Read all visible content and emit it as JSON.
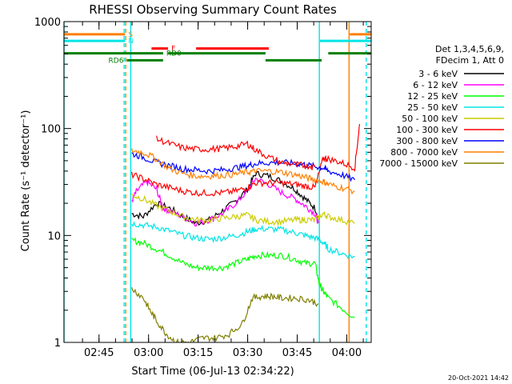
{
  "chart_data": {
    "type": "line",
    "title": "RHESSI Observing Summary Count Rates",
    "xlabel": "Start Time (06-Jul-13 02:34:22)",
    "ylabel": "Count Rate (s⁻¹ detector⁻¹)",
    "yscale": "log",
    "ylim": [
      1,
      1000
    ],
    "xlim": [
      0,
      93
    ],
    "x_unit": "minutes after 02:34:22",
    "y_ticks": [
      {
        "value": 1,
        "label": "1"
      },
      {
        "value": 10,
        "label": "10"
      },
      {
        "value": 100,
        "label": "100"
      },
      {
        "value": 1000,
        "label": "1000"
      }
    ],
    "x_ticks": [
      {
        "value": 10.6,
        "label": "02:45"
      },
      {
        "value": 25.6,
        "label": "03:00"
      },
      {
        "value": 40.6,
        "label": "03:15"
      },
      {
        "value": 55.6,
        "label": "03:30"
      },
      {
        "value": 70.6,
        "label": "03:45"
      },
      {
        "value": 85.6,
        "label": "04:00"
      }
    ],
    "legend_header": [
      "Det 1,3,4,5,6,9,",
      "FDecim 1, Att 0"
    ],
    "legend_position": "right",
    "timestamp": "20-Oct-2021 14:42",
    "flags": [
      {
        "label": "S",
        "color": "#ff7f00",
        "level": 760,
        "segments": [
          [
            0,
            18.5
          ],
          [
            86.5,
            93
          ]
        ]
      },
      {
        "label": "N",
        "color": "#00e5e5",
        "level": 660,
        "segments": [
          [
            0,
            18.5
          ],
          [
            77.5,
            93
          ]
        ]
      },
      {
        "label": "F",
        "color": "#ff0000",
        "level": 560,
        "segments": [
          [
            26.5,
            31.5
          ],
          [
            40,
            62
          ]
        ]
      },
      {
        "label": "RD0",
        "color": "#007f00",
        "level": 505,
        "segments": [
          [
            0,
            30
          ],
          [
            31.5,
            61
          ],
          [
            80,
            93
          ]
        ]
      },
      {
        "label": "RD6",
        "color": "#007f00",
        "level": 435,
        "segments": [
          [
            19,
            30
          ],
          [
            61,
            78
          ]
        ]
      }
    ],
    "saa_lines": [
      {
        "x": 0,
        "color": "#00e5e5",
        "style": "solid"
      },
      {
        "x": 18.2,
        "color": "#00e5e5",
        "style": "dashed"
      },
      {
        "x": 18.7,
        "color": "#ff7f00",
        "style": "dashed"
      },
      {
        "x": 20.2,
        "color": "#00e5e5",
        "style": "solid"
      },
      {
        "x": 77.3,
        "color": "#00e5e5",
        "style": "solid"
      },
      {
        "x": 86.3,
        "color": "#ff7f00",
        "style": "solid"
      },
      {
        "x": 91.5,
        "color": "#00e5e5",
        "style": "dashed"
      }
    ],
    "series": [
      {
        "name": "3 - 6 keV",
        "color": "#000000",
        "x": [
          20.5,
          24,
          28,
          32,
          36,
          40,
          44,
          48,
          52,
          55.5,
          58,
          62,
          66,
          70,
          73,
          76,
          77
        ],
        "y": [
          16,
          15,
          20,
          18,
          15,
          13,
          14,
          17,
          21,
          27,
          38,
          36,
          32,
          27,
          22,
          18,
          14
        ]
      },
      {
        "name": "6 - 12 keV",
        "color": "#ff00ff",
        "x": [
          20.5,
          22,
          25,
          28,
          30,
          32,
          36,
          40,
          44,
          48,
          52,
          55.5,
          58,
          62,
          66,
          70,
          73,
          76,
          77
        ],
        "y": [
          21,
          26,
          32,
          27,
          18,
          17,
          15,
          13,
          14,
          16,
          20,
          26,
          34,
          30,
          25,
          22,
          19,
          16,
          13
        ]
      },
      {
        "name": "12 - 25 keV",
        "color": "#00ff00",
        "x": [
          20.5,
          24,
          28,
          32,
          36,
          40,
          44,
          48,
          52,
          55.5,
          58,
          62,
          66,
          70,
          73,
          76,
          77.3,
          78.5,
          80,
          84,
          88
        ],
        "y": [
          9,
          8.5,
          7.5,
          6.5,
          5.5,
          5,
          5,
          5,
          5.5,
          6,
          6.5,
          6.5,
          6.5,
          6,
          5.5,
          5.5,
          3.5,
          3,
          2.6,
          2.1,
          1.7
        ]
      },
      {
        "name": "25 - 50 keV",
        "color": "#00e5e5",
        "x": [
          20.5,
          24,
          28,
          32,
          36,
          40,
          44,
          48,
          52,
          55.5,
          58,
          62,
          66,
          70,
          73,
          76,
          78.5,
          80,
          84,
          88
        ],
        "y": [
          13,
          12.5,
          12,
          11,
          10,
          9.5,
          9.2,
          9.5,
          10,
          10.8,
          11.5,
          11.5,
          11.3,
          10.6,
          10,
          9.5,
          8.6,
          7.5,
          6.8,
          6.3
        ]
      },
      {
        "name": "50 - 100 keV",
        "color": "#cccc00",
        "x": [
          20.5,
          24,
          28,
          32,
          36,
          40,
          44,
          48,
          52,
          55.5,
          58,
          62,
          66,
          70,
          73,
          76,
          78.5,
          80,
          84,
          88
        ],
        "y": [
          24,
          22,
          19,
          17,
          15,
          14,
          14,
          14.5,
          15,
          15.5,
          14,
          13.5,
          13.5,
          14,
          14,
          14,
          16,
          15,
          14,
          13
        ]
      },
      {
        "name": "100 - 300 keV",
        "color": "#ff0000",
        "x": [
          20.5,
          24,
          28,
          32,
          36,
          40,
          44,
          48,
          52,
          55.5,
          58,
          62,
          66,
          70,
          73,
          76,
          78.5,
          80,
          84,
          88,
          89.5
        ],
        "y": [
          37,
          34,
          30,
          28,
          26,
          25,
          25,
          25,
          26,
          28,
          31,
          31,
          31,
          30,
          29,
          28,
          53,
          52,
          48,
          43,
          110
        ]
      },
      {
        "name": "300 - 800 keV",
        "color": "#0000ff",
        "x": [
          20.5,
          24,
          28,
          32,
          36,
          40,
          44,
          48,
          52,
          55.5,
          58,
          62,
          66,
          70,
          73,
          76,
          78.5,
          80,
          84,
          88
        ],
        "y": [
          58,
          54,
          48,
          45,
          42,
          41,
          40,
          41,
          43,
          45,
          47,
          48,
          48,
          47,
          46,
          44,
          43,
          40,
          37,
          33
        ]
      },
      {
        "name": "800 - 7000 keV",
        "color": "#ff7f00",
        "x": [
          20.5,
          24,
          28,
          32,
          36,
          40,
          44,
          48,
          52,
          55.5,
          58,
          62,
          66,
          70,
          73,
          76,
          78.5,
          80,
          84,
          88
        ],
        "y": [
          62,
          60,
          52,
          42,
          38,
          36,
          36,
          36.5,
          37.5,
          39,
          40,
          40,
          39,
          37,
          35,
          33,
          32,
          30,
          28,
          26
        ]
      },
      {
        "name": "100 - 300 keV (upper)",
        "legend": false,
        "color": "#ff0000",
        "x": [
          28,
          32,
          36,
          40,
          44,
          48,
          52,
          55.5,
          58,
          62,
          66,
          70,
          73,
          76
        ],
        "y": [
          80,
          72,
          66,
          64,
          64,
          65,
          68,
          72,
          63,
          54,
          48,
          46,
          45,
          44
        ]
      },
      {
        "name": "7000 - 15000 keV",
        "color": "#7f7f00",
        "x": [
          20.5,
          24,
          26,
          28,
          31,
          34,
          38,
          42,
          46,
          50,
          54,
          57,
          60,
          63,
          66,
          70,
          74,
          77
        ],
        "y": [
          3.2,
          2.6,
          2.0,
          1.6,
          1.2,
          1.0,
          1.0,
          1.1,
          1.1,
          1.2,
          1.5,
          2.6,
          2.7,
          2.7,
          2.6,
          2.6,
          2.5,
          2.3
        ]
      }
    ]
  }
}
